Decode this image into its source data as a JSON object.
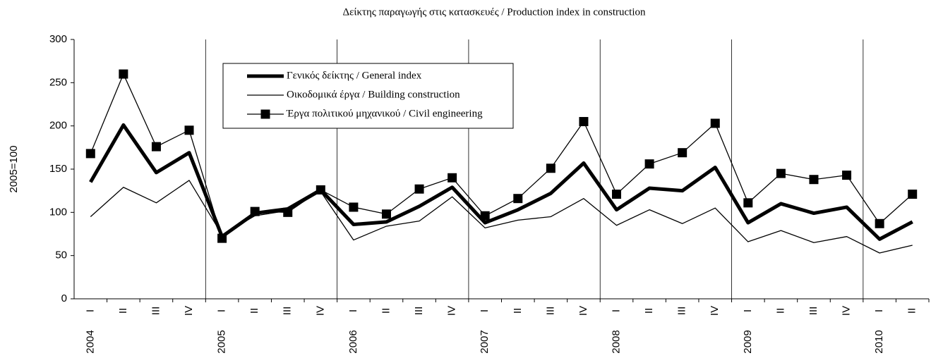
{
  "chart_data": {
    "type": "line",
    "title": "Δείκτης παραγωγής στις κατασκευές /  Production index in construction",
    "y_label": "2005=100",
    "categories": [
      "I",
      "II",
      "III",
      "IV",
      "I",
      "II",
      "III",
      "IV",
      "I",
      "II",
      "III",
      "IV",
      "I",
      "II",
      "III",
      "IV",
      "I",
      "II",
      "III",
      "IV",
      "I",
      "II",
      "III",
      "IV",
      "I",
      "II"
    ],
    "years": [
      "2004",
      null,
      null,
      null,
      "2005",
      null,
      null,
      null,
      "2006",
      null,
      null,
      null,
      "2007",
      null,
      null,
      null,
      "2008",
      null,
      null,
      null,
      "2009",
      null,
      null,
      null,
      "2010",
      null
    ],
    "series": [
      {
        "name": "Γενικός δείκτης / General index",
        "color": "#000000",
        "values": [
          135,
          201,
          146,
          169,
          72,
          99,
          104,
          126,
          86,
          89,
          107,
          129,
          88,
          103,
          122,
          157,
          103,
          128,
          125,
          152,
          88,
          110,
          99,
          106,
          69,
          89
        ]
      },
      {
        "name": "Οικοδομικά έργα / Building construction",
        "color": "#000000",
        "values": [
          95,
          129,
          111,
          137,
          74,
          96,
          102,
          124,
          68,
          84,
          90,
          118,
          82,
          91,
          95,
          116,
          85,
          103,
          87,
          105,
          66,
          79,
          65,
          72,
          53,
          62
        ]
      },
      {
        "name": "Έργα πολιτικού μηχανικού / Civil engineering",
        "color": "#000000",
        "values": [
          168,
          260,
          176,
          195,
          70,
          101,
          100,
          126,
          106,
          98,
          127,
          140,
          96,
          116,
          151,
          205,
          121,
          156,
          169,
          203,
          111,
          145,
          138,
          143,
          87,
          121
        ]
      }
    ],
    "ylim": [
      0,
      300
    ],
    "yticks": [
      0,
      50,
      100,
      150,
      200,
      250,
      300
    ],
    "legend": "upper left"
  }
}
